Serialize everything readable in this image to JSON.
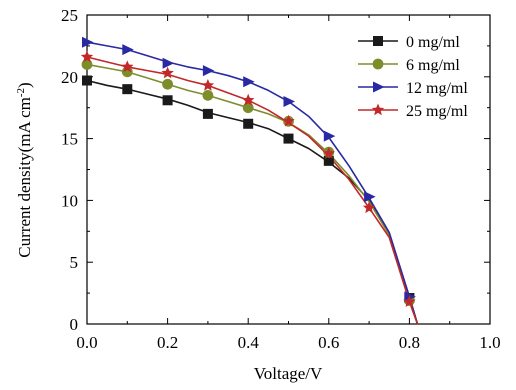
{
  "chart_data": {
    "type": "line",
    "xlabel": "Voltage/V",
    "ylabel": "Current density(mA cm",
    "ylabel_sup": "-2",
    "ylabel_tail": ")",
    "xlim": [
      0,
      1.0
    ],
    "ylim": [
      0,
      25
    ],
    "x_ticks": [
      "0.0",
      "0.2",
      "0.4",
      "0.6",
      "0.8",
      "1.0"
    ],
    "y_ticks": [
      "0",
      "5",
      "10",
      "15",
      "20",
      "25"
    ],
    "grid": false,
    "legend_position": "top-right",
    "series": [
      {
        "name": "0 mg/ml",
        "color": "#1a1a1a",
        "marker": "square",
        "curve": [
          [
            0,
            19.7
          ],
          [
            0.05,
            19.3
          ],
          [
            0.1,
            19.0
          ],
          [
            0.15,
            18.6
          ],
          [
            0.2,
            18.2
          ],
          [
            0.25,
            17.7
          ],
          [
            0.3,
            17.1
          ],
          [
            0.35,
            16.7
          ],
          [
            0.4,
            16.3
          ],
          [
            0.45,
            15.8
          ],
          [
            0.5,
            15.0
          ],
          [
            0.55,
            14.2
          ],
          [
            0.6,
            13.1
          ],
          [
            0.65,
            11.8
          ],
          [
            0.7,
            10.0
          ],
          [
            0.75,
            7.3
          ],
          [
            0.8,
            2.2
          ],
          [
            0.82,
            0
          ]
        ],
        "markers": [
          [
            0,
            19.7
          ],
          [
            0.1,
            19.0
          ],
          [
            0.2,
            18.1
          ],
          [
            0.3,
            17.0
          ],
          [
            0.4,
            16.2
          ],
          [
            0.5,
            15.0
          ],
          [
            0.6,
            13.2
          ],
          [
            0.8,
            2.1
          ]
        ]
      },
      {
        "name": "6 mg/ml",
        "color": "#7d8d2c",
        "marker": "circle",
        "curve": [
          [
            0,
            21.0
          ],
          [
            0.05,
            20.7
          ],
          [
            0.1,
            20.4
          ],
          [
            0.15,
            19.9
          ],
          [
            0.2,
            19.4
          ],
          [
            0.25,
            18.9
          ],
          [
            0.3,
            18.5
          ],
          [
            0.35,
            18.0
          ],
          [
            0.4,
            17.5
          ],
          [
            0.45,
            17.0
          ],
          [
            0.5,
            16.3
          ],
          [
            0.55,
            15.3
          ],
          [
            0.6,
            13.8
          ],
          [
            0.65,
            12.0
          ],
          [
            0.7,
            9.9
          ],
          [
            0.75,
            7.2
          ],
          [
            0.8,
            2.0
          ],
          [
            0.82,
            0
          ]
        ],
        "markers": [
          [
            0,
            21.0
          ],
          [
            0.1,
            20.4
          ],
          [
            0.2,
            19.4
          ],
          [
            0.3,
            18.5
          ],
          [
            0.4,
            17.5
          ],
          [
            0.5,
            16.4
          ],
          [
            0.6,
            13.9
          ],
          [
            0.8,
            1.9
          ]
        ]
      },
      {
        "name": "12 mg/ml",
        "color": "#2929a3",
        "marker": "triangle-right",
        "curve": [
          [
            0,
            22.8
          ],
          [
            0.05,
            22.5
          ],
          [
            0.1,
            22.2
          ],
          [
            0.15,
            21.7
          ],
          [
            0.2,
            21.2
          ],
          [
            0.25,
            20.8
          ],
          [
            0.3,
            20.5
          ],
          [
            0.35,
            20.1
          ],
          [
            0.4,
            19.6
          ],
          [
            0.45,
            18.9
          ],
          [
            0.5,
            18.0
          ],
          [
            0.55,
            16.8
          ],
          [
            0.6,
            15.1
          ],
          [
            0.65,
            12.8
          ],
          [
            0.7,
            10.2
          ],
          [
            0.75,
            7.4
          ],
          [
            0.8,
            2.2
          ],
          [
            0.82,
            0
          ]
        ],
        "markers": [
          [
            0,
            22.8
          ],
          [
            0.1,
            22.2
          ],
          [
            0.2,
            21.1
          ],
          [
            0.3,
            20.5
          ],
          [
            0.4,
            19.6
          ],
          [
            0.5,
            18.0
          ],
          [
            0.6,
            15.2
          ],
          [
            0.7,
            10.3
          ],
          [
            0.8,
            2.2
          ]
        ]
      },
      {
        "name": "25 mg/ml",
        "color": "#c2282a",
        "marker": "star",
        "curve": [
          [
            0,
            21.6
          ],
          [
            0.05,
            21.2
          ],
          [
            0.1,
            20.8
          ],
          [
            0.15,
            20.5
          ],
          [
            0.2,
            20.2
          ],
          [
            0.25,
            19.7
          ],
          [
            0.3,
            19.3
          ],
          [
            0.35,
            18.7
          ],
          [
            0.4,
            18.1
          ],
          [
            0.45,
            17.3
          ],
          [
            0.5,
            16.3
          ],
          [
            0.55,
            15.2
          ],
          [
            0.6,
            13.6
          ],
          [
            0.65,
            11.7
          ],
          [
            0.7,
            9.4
          ],
          [
            0.75,
            7.0
          ],
          [
            0.8,
            1.8
          ],
          [
            0.82,
            0
          ]
        ],
        "markers": [
          [
            0,
            21.6
          ],
          [
            0.1,
            20.8
          ],
          [
            0.2,
            20.3
          ],
          [
            0.3,
            19.3
          ],
          [
            0.4,
            18.1
          ],
          [
            0.5,
            16.4
          ],
          [
            0.6,
            13.8
          ],
          [
            0.7,
            9.4
          ],
          [
            0.8,
            1.8
          ]
        ]
      }
    ]
  }
}
